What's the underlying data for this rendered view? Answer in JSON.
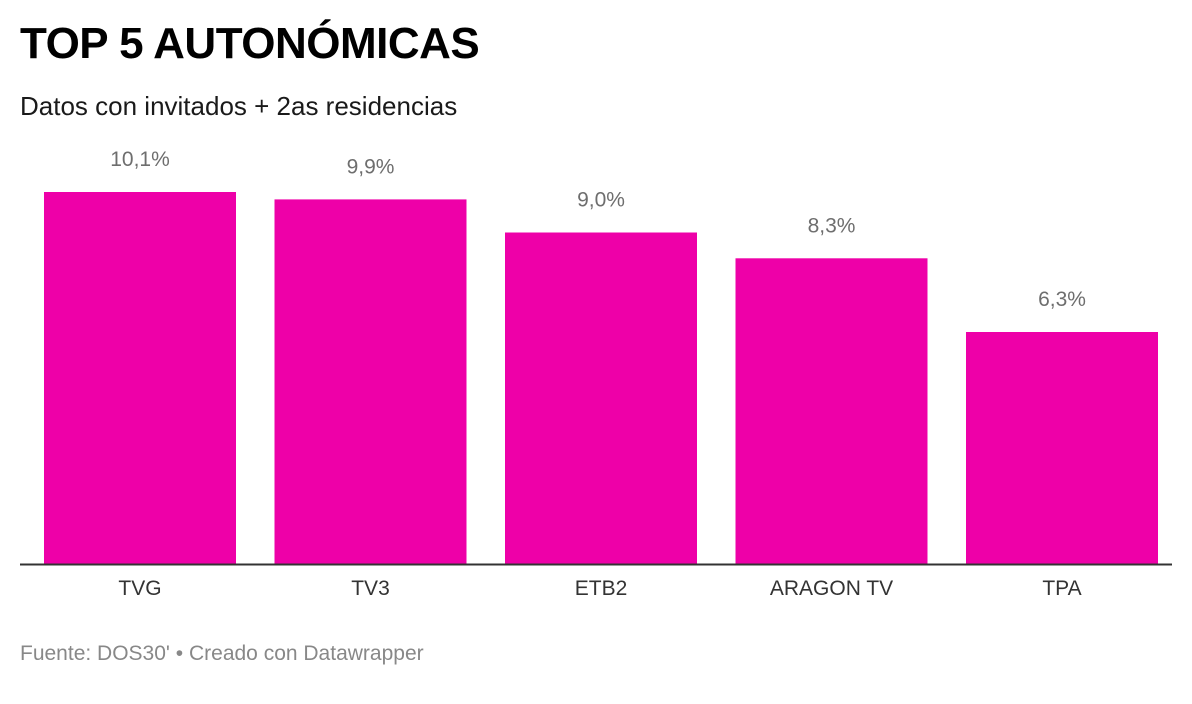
{
  "title": "TOP 5 AUTONÓMICAS",
  "subtitle": "Datos con invitados + 2as residencias",
  "footer": {
    "source_label": "Fuente: DOS30'",
    "separator": "•",
    "credit": "Creado con Datawrapper"
  },
  "colors": {
    "bar": "#ee00a8",
    "value_label": "#6e6e6e",
    "axis": "#333333",
    "category_label": "#333333"
  },
  "chart_data": {
    "type": "bar",
    "title": "TOP 5 AUTONÓMICAS",
    "subtitle": "Datos con invitados + 2as residencias",
    "categories": [
      "TVG",
      "TV3",
      "ETB2",
      "ARAGON TV",
      "TPA"
    ],
    "values": [
      10.1,
      9.9,
      9.0,
      8.3,
      6.3
    ],
    "value_labels": [
      "10,1%",
      "9,9%",
      "9,0%",
      "8,3%",
      "6,3%"
    ],
    "unit": "%",
    "ylim": [
      0,
      10.1
    ],
    "grid": false,
    "legend": "none"
  }
}
